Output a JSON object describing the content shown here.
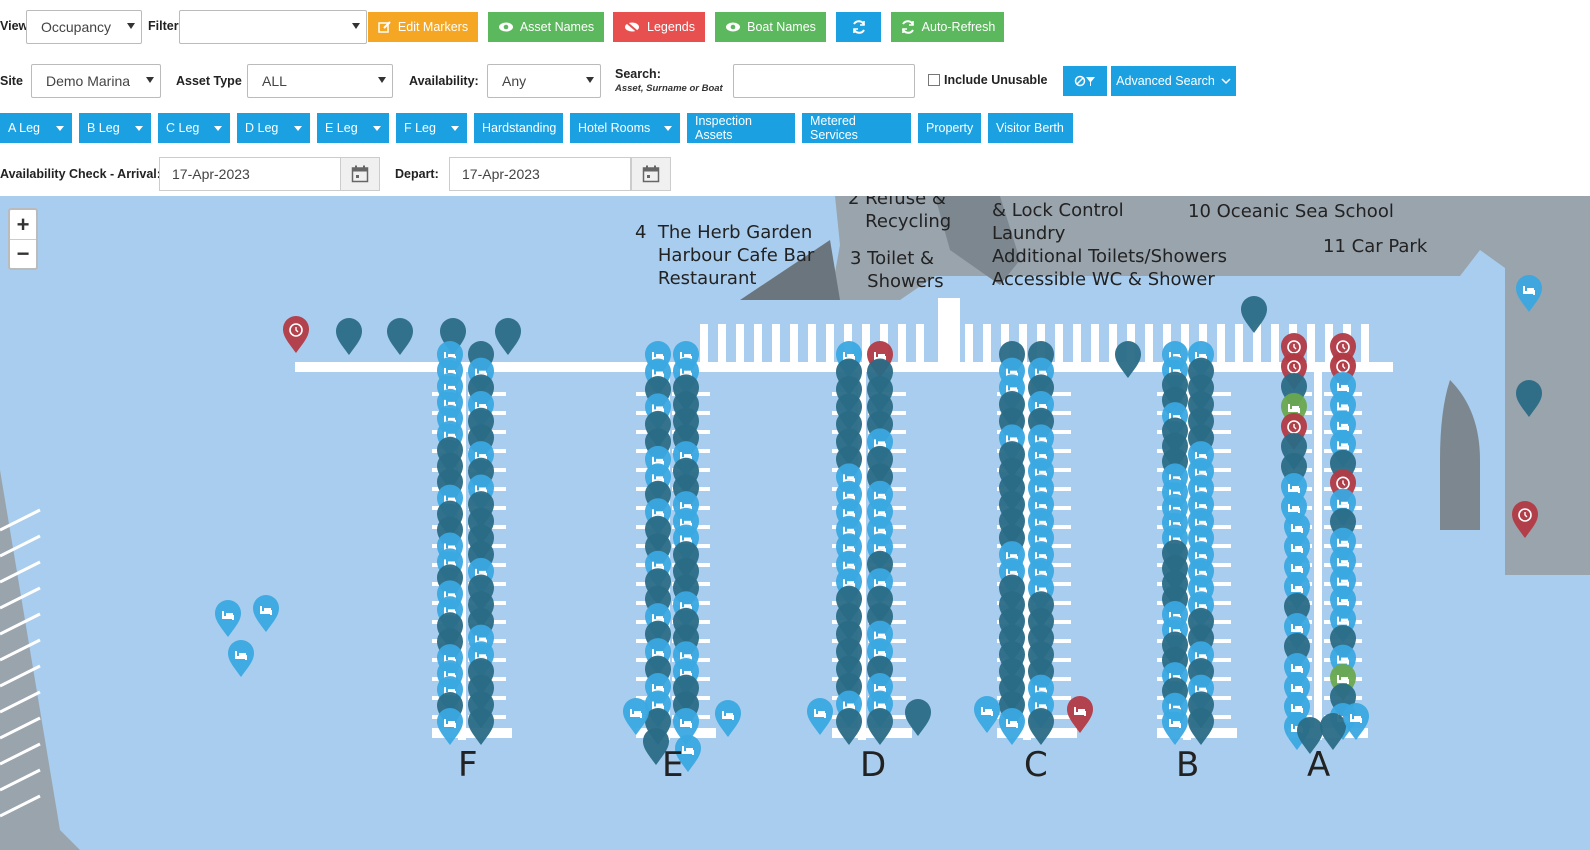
{
  "toolbar": {
    "view_label": "View",
    "view_value": "Occupancy",
    "filter_label": "Filter",
    "filter_value": "",
    "edit_markers": "Edit Markers",
    "asset_names": "Asset Names",
    "legends": "Legends",
    "boat_names": "Boat Names",
    "auto_refresh": "Auto-Refresh"
  },
  "search": {
    "site_label": "Site",
    "site_value": "Demo Marina",
    "asset_type_label": "Asset Type",
    "asset_type_value": "ALL",
    "availability_label": "Availability:",
    "availability_value": "Any",
    "search_label": "Search:",
    "search_hint": "Asset, Surname or Boat",
    "search_value": "",
    "include_unusable": "Include Unusable",
    "advanced_search": "Advanced Search"
  },
  "legs": [
    {
      "label": "A Leg",
      "dropdown": true
    },
    {
      "label": "B Leg",
      "dropdown": true
    },
    {
      "label": "C Leg",
      "dropdown": true
    },
    {
      "label": "D Leg",
      "dropdown": true
    },
    {
      "label": "E Leg",
      "dropdown": true
    },
    {
      "label": "F Leg",
      "dropdown": true
    },
    {
      "label": "Hardstanding",
      "dropdown": false
    },
    {
      "label": "Hotel Rooms",
      "dropdown": true
    },
    {
      "label": "Inspection Assets",
      "dropdown": false
    },
    {
      "label": "Metered Services",
      "dropdown": false
    },
    {
      "label": "Property",
      "dropdown": false
    },
    {
      "label": "Visitor Berth",
      "dropdown": false
    }
  ],
  "availability_check": {
    "arrival_label": "Availability Check - Arrival:",
    "arrival_value": "17-Apr-2023",
    "depart_label": "Depart:",
    "depart_value": "17-Apr-2023"
  },
  "map": {
    "zoom_in": "+",
    "zoom_out": "−",
    "labels": {
      "refuse": "2 Refuse &\n   Recycling",
      "herb": "4  The Herb Garden\n    Harbour Cafe Bar\n    Restaurant",
      "toilet": "3 Toilet &\n   Showers",
      "lock": "& Lock Control\nLaundry\nAdditional Toilets/Showers\nAccessible WC & Shower",
      "school": "10 Oceanic Sea School",
      "carpark": "11 Car Park"
    },
    "piers": [
      "F",
      "E",
      "D",
      "C",
      "B",
      "A"
    ],
    "colors": {
      "water": "#a9cdee",
      "land": "#9aa4ad",
      "available": "#3aa8e0",
      "occupied": "#2a6b86",
      "alert": "#b23a44",
      "green": "#6aa84f"
    }
  }
}
